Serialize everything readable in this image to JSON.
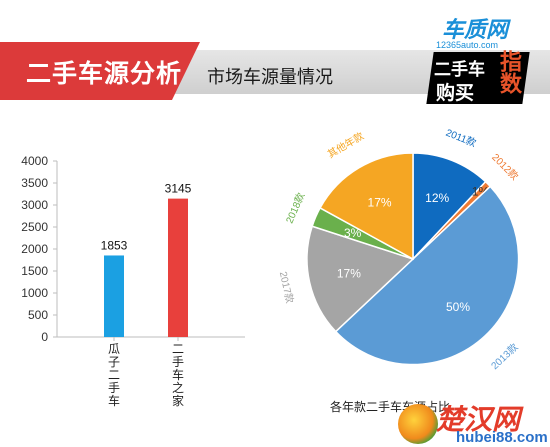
{
  "header": {
    "title": "二手车源分析",
    "subtitle": "市场车源量情况"
  },
  "logo": {
    "site_name": "车质网",
    "site_url": "12365auto.com",
    "line1": "二手车",
    "line2": "购买",
    "accent": "指数"
  },
  "watermark": {
    "brand": "楚汉网",
    "url": "hubei88.com"
  },
  "chart_data": [
    {
      "type": "bar",
      "categories": [
        "瓜子二手车",
        "二手车之家"
      ],
      "values": [
        1853,
        3145
      ],
      "colors": [
        "#1ba0e2",
        "#e8403c"
      ],
      "ylim": [
        0,
        4000
      ],
      "yticks": [
        0,
        500,
        1000,
        1500,
        2000,
        2500,
        3000,
        3500,
        4000
      ],
      "data_labels": [
        "1853",
        "3145"
      ],
      "grid": false
    },
    {
      "type": "pie",
      "title": "各年款二手车车源占比",
      "slices": [
        {
          "label": "2011款",
          "value": 12,
          "display": "12%",
          "color": "#0f6bc0"
        },
        {
          "label": "2012款",
          "value": 1,
          "display": "1%",
          "color": "#ee7a33"
        },
        {
          "label": "2013款",
          "value": 50,
          "display": "50%",
          "color": "#5b9bd5"
        },
        {
          "label": "2017款",
          "value": 17,
          "display": "17%",
          "color": "#a5a5a5"
        },
        {
          "label": "2018款",
          "value": 3,
          "display": "3%",
          "color": "#6ab04c"
        },
        {
          "label": "其他年款",
          "value": 17,
          "display": "17%",
          "color": "#f5a623"
        }
      ]
    }
  ]
}
